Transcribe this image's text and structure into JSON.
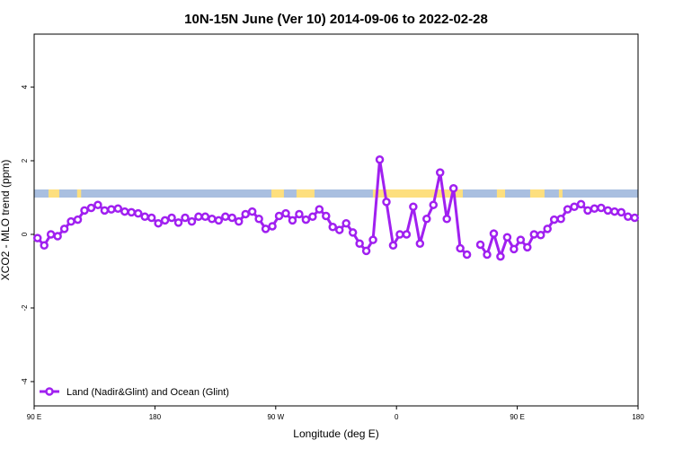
{
  "chart_data": {
    "type": "line",
    "title": "10N-15N June (Ver 10)   2014-09-06 to 2022-02-28",
    "xlabel": "Longitude (deg E)",
    "ylabel": "XCO2 - MLO trend (ppm)",
    "xlim": [
      90,
      540
    ],
    "ylim": [
      -4.66,
      5.44
    ],
    "xticks": [
      {
        "value": 90,
        "label": "90 E"
      },
      {
        "value": 180,
        "label": "180"
      },
      {
        "value": 270,
        "label": "90 W"
      },
      {
        "value": 360,
        "label": "0"
      },
      {
        "value": 450,
        "label": "90 E"
      },
      {
        "value": 540,
        "label": "180"
      }
    ],
    "yticks": [
      -4,
      -2,
      0,
      2,
      4
    ],
    "legend": "bottom-left",
    "band": {
      "ylim": [
        1.0,
        1.22
      ],
      "color": "#a9bfe0",
      "land_color": "#fddf7e",
      "land_spans": [
        [
          100.7,
          108.7
        ],
        [
          122,
          125
        ],
        [
          266.8,
          276.1
        ],
        [
          285.5,
          298.9
        ],
        [
          342.4,
          409.4
        ],
        [
          434.8,
          440.9
        ],
        [
          459.6,
          470.3
        ],
        [
          481,
          483.7
        ]
      ]
    },
    "x": [
      92.5,
      97.5,
      102.5,
      107.5,
      112.5,
      117.5,
      122.5,
      127.5,
      132.5,
      137.5,
      142.5,
      147.5,
      152.5,
      157.5,
      162.5,
      167.5,
      172.5,
      177.5,
      182.5,
      187.5,
      192.5,
      197.5,
      202.5,
      207.5,
      212.5,
      217.5,
      222.5,
      227.5,
      232.5,
      237.5,
      242.5,
      247.5,
      252.5,
      257.5,
      262.5,
      267.5,
      272.5,
      277.5,
      282.5,
      287.5,
      292.5,
      297.5,
      302.5,
      307.5,
      312.5,
      317.5,
      322.5,
      327.5,
      332.5,
      337.5,
      342.5,
      347.5,
      352.5,
      357.5,
      362.5,
      367.5,
      372.5,
      377.5,
      382.5,
      387.5,
      392.5,
      397.5,
      402.5,
      407.5,
      412.5,
      417.5,
      422.5,
      427.5,
      432.5,
      437.5,
      442.5,
      447.5,
      452.5,
      457.5,
      462.5,
      467.5,
      472.5,
      477.5,
      482.5,
      487.5,
      492.5,
      497.5,
      502.5,
      507.5,
      512.5,
      517.5,
      522.5,
      527.5,
      532.5,
      537.5
    ],
    "series": [
      {
        "name": "Land (Nadir&Glint) and Ocean (Glint)",
        "color": "#a020f0",
        "values": [
          -0.1,
          -0.3,
          0.0,
          -0.05,
          0.15,
          0.35,
          0.4,
          0.65,
          0.72,
          0.8,
          0.65,
          0.68,
          0.7,
          0.62,
          0.6,
          0.57,
          0.48,
          0.45,
          0.3,
          0.38,
          0.45,
          0.32,
          0.45,
          0.35,
          0.48,
          0.48,
          0.42,
          0.38,
          0.48,
          0.45,
          0.35,
          0.55,
          0.62,
          0.42,
          0.15,
          0.22,
          0.5,
          0.57,
          0.38,
          0.55,
          0.4,
          0.48,
          0.68,
          0.5,
          0.2,
          0.12,
          0.3,
          0.05,
          -0.25,
          -0.45,
          -0.15,
          2.03,
          0.88,
          -0.3,
          0.0,
          0.0,
          0.75,
          -0.25,
          0.42,
          0.8,
          1.68,
          0.42,
          1.25,
          -0.38,
          -0.55,
          null,
          -0.28,
          -0.55,
          0.02,
          -0.6,
          -0.08,
          -0.4,
          -0.15,
          -0.35,
          0.0,
          -0.02,
          0.15,
          0.4,
          0.42,
          0.68,
          0.75,
          0.82,
          0.65,
          0.7,
          0.72,
          0.65,
          0.62,
          0.6,
          0.48,
          0.45
        ]
      }
    ]
  }
}
